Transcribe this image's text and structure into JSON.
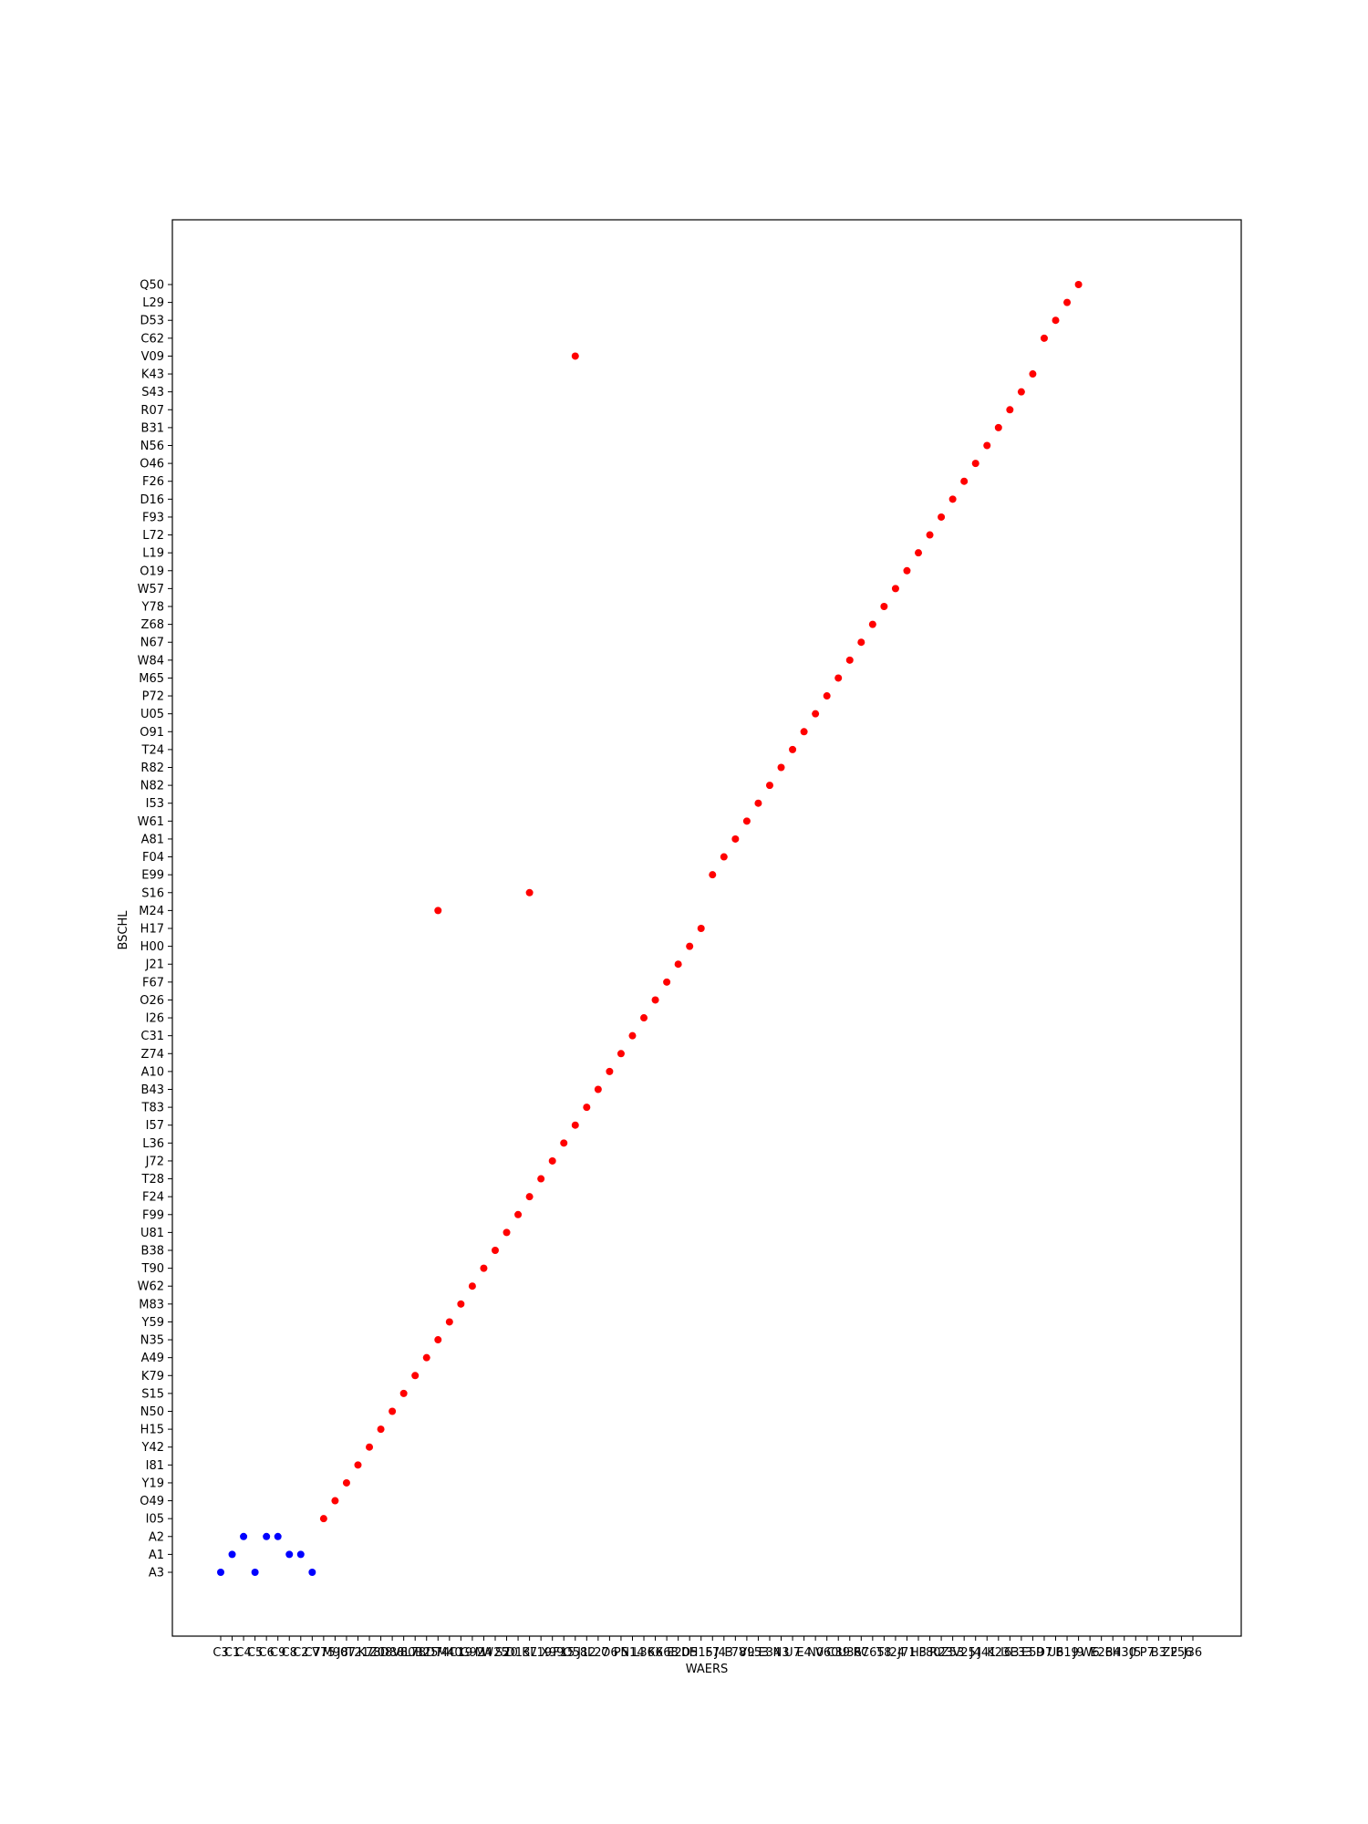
{
  "chart_data": {
    "type": "scatter",
    "title": "",
    "xlabel": "WAERS",
    "ylabel": "BSCHL",
    "grid": false,
    "legend": false,
    "x_categories": [
      "C3",
      "C1",
      "C4",
      "C5",
      "C6",
      "C9",
      "C8",
      "C2",
      "C7",
      "V75",
      "M90",
      "J87",
      "T21",
      "K78",
      "Z08",
      "D88",
      "V80",
      "L78",
      "B25",
      "D74",
      "M40",
      "C19",
      "G92",
      "M4",
      "W25",
      "S20",
      "D13",
      "K7",
      "L19",
      "X99",
      "F15",
      "O58",
      "J12",
      "L27",
      "O6",
      "P5",
      "N14",
      "L36",
      "K6",
      "X68",
      "E20",
      "D5",
      "H15",
      "F7",
      "J43",
      "F78",
      "V9",
      "L53",
      "E34",
      "N3",
      "U7",
      "E4",
      "N0",
      "V60",
      "C39",
      "U36",
      "R7",
      "C65",
      "T8",
      "I24",
      "J71",
      "H3",
      "F80",
      "R23",
      "Z53",
      "V25",
      "J4",
      "J41",
      "K23",
      "I63",
      "E33",
      "E59",
      "D7",
      "U6",
      "B19",
      "J9",
      "W6",
      "E26",
      "B4",
      "H30",
      "J5",
      "P7",
      "B3",
      "Z2",
      "F56",
      "J36"
    ],
    "y_categories": [
      "A3",
      "A1",
      "A2",
      "I05",
      "O49",
      "Y19",
      "I81",
      "Y42",
      "H15",
      "N50",
      "S15",
      "K79",
      "A49",
      "N35",
      "Y59",
      "M83",
      "W62",
      "T90",
      "B38",
      "U81",
      "F99",
      "F24",
      "T28",
      "J72",
      "L36",
      "I57",
      "T83",
      "B43",
      "A10",
      "Z74",
      "C31",
      "I26",
      "O26",
      "F67",
      "J21",
      "H00",
      "H17",
      "M24",
      "S16",
      "E99",
      "F04",
      "A81",
      "W61",
      "I53",
      "N82",
      "R82",
      "T24",
      "O91",
      "U05",
      "P72",
      "M65",
      "W84",
      "N67",
      "Z68",
      "Y78",
      "W57",
      "O19",
      "L19",
      "L72",
      "F93",
      "D16",
      "F26",
      "O46",
      "N56",
      "B31",
      "R07",
      "S43",
      "K43",
      "V09",
      "C62",
      "D53",
      "L29",
      "Q50"
    ],
    "series": [
      {
        "color": "#0000ff",
        "points": [
          {
            "x": "C3",
            "y": "A3"
          },
          {
            "x": "C1",
            "y": "A1"
          },
          {
            "x": "C4",
            "y": "A2"
          },
          {
            "x": "C5",
            "y": "A3"
          },
          {
            "x": "C6",
            "y": "A2"
          },
          {
            "x": "C9",
            "y": "A2"
          },
          {
            "x": "C8",
            "y": "A1"
          },
          {
            "x": "C2",
            "y": "A1"
          },
          {
            "x": "C7",
            "y": "A3"
          }
        ]
      },
      {
        "color": "#ff0000",
        "points": [
          {
            "x": "V75",
            "y": "I05"
          },
          {
            "x": "M90",
            "y": "O49"
          },
          {
            "x": "J87",
            "y": "Y19"
          },
          {
            "x": "T21",
            "y": "I81"
          },
          {
            "x": "K78",
            "y": "Y42"
          },
          {
            "x": "Z08",
            "y": "H15"
          },
          {
            "x": "D88",
            "y": "N50"
          },
          {
            "x": "V80",
            "y": "S15"
          },
          {
            "x": "L78",
            "y": "K79"
          },
          {
            "x": "B25",
            "y": "A49"
          },
          {
            "x": "D74",
            "y": "N35"
          },
          {
            "x": "M40",
            "y": "Y59"
          },
          {
            "x": "C19",
            "y": "M83"
          },
          {
            "x": "G92",
            "y": "W62"
          },
          {
            "x": "M4",
            "y": "T90"
          },
          {
            "x": "W25",
            "y": "B38"
          },
          {
            "x": "S20",
            "y": "U81"
          },
          {
            "x": "D13",
            "y": "F99"
          },
          {
            "x": "K7",
            "y": "F24"
          },
          {
            "x": "L19",
            "y": "T28"
          },
          {
            "x": "X99",
            "y": "J72"
          },
          {
            "x": "F15",
            "y": "L36"
          },
          {
            "x": "O58",
            "y": "I57"
          },
          {
            "x": "J12",
            "y": "T83"
          },
          {
            "x": "L27",
            "y": "B43"
          },
          {
            "x": "O6",
            "y": "A10"
          },
          {
            "x": "P5",
            "y": "Z74"
          },
          {
            "x": "N14",
            "y": "C31"
          },
          {
            "x": "L36",
            "y": "I26"
          },
          {
            "x": "K6",
            "y": "O26"
          },
          {
            "x": "X68",
            "y": "F67"
          },
          {
            "x": "E20",
            "y": "J21"
          },
          {
            "x": "D5",
            "y": "H00"
          },
          {
            "x": "H15",
            "y": "H17"
          },
          {
            "x": "F7",
            "y": "E99"
          },
          {
            "x": "J43",
            "y": "F04"
          },
          {
            "x": "F78",
            "y": "A81"
          },
          {
            "x": "V9",
            "y": "W61"
          },
          {
            "x": "L53",
            "y": "I53"
          },
          {
            "x": "E34",
            "y": "N82"
          },
          {
            "x": "N3",
            "y": "R82"
          },
          {
            "x": "U7",
            "y": "T24"
          },
          {
            "x": "E4",
            "y": "O91"
          },
          {
            "x": "N0",
            "y": "U05"
          },
          {
            "x": "V60",
            "y": "P72"
          },
          {
            "x": "C39",
            "y": "M65"
          },
          {
            "x": "U36",
            "y": "W84"
          },
          {
            "x": "R7",
            "y": "N67"
          },
          {
            "x": "C65",
            "y": "Z68"
          },
          {
            "x": "T8",
            "y": "Y78"
          },
          {
            "x": "I24",
            "y": "W57"
          },
          {
            "x": "J71",
            "y": "O19"
          },
          {
            "x": "H3",
            "y": "L19"
          },
          {
            "x": "F80",
            "y": "L72"
          },
          {
            "x": "R23",
            "y": "F93"
          },
          {
            "x": "Z53",
            "y": "D16"
          },
          {
            "x": "V25",
            "y": "F26"
          },
          {
            "x": "J4",
            "y": "O46"
          },
          {
            "x": "J41",
            "y": "N56"
          },
          {
            "x": "K23",
            "y": "B31"
          },
          {
            "x": "I63",
            "y": "R07"
          },
          {
            "x": "E33",
            "y": "S43"
          },
          {
            "x": "E59",
            "y": "K43"
          },
          {
            "x": "D7",
            "y": "C62"
          },
          {
            "x": "U6",
            "y": "D53"
          },
          {
            "x": "B19",
            "y": "L29"
          },
          {
            "x": "J9",
            "y": "Q50"
          },
          {
            "x": "D74",
            "y": "M24"
          },
          {
            "x": "K7",
            "y": "S16"
          },
          {
            "x": "O58",
            "y": "V09"
          }
        ]
      }
    ]
  }
}
